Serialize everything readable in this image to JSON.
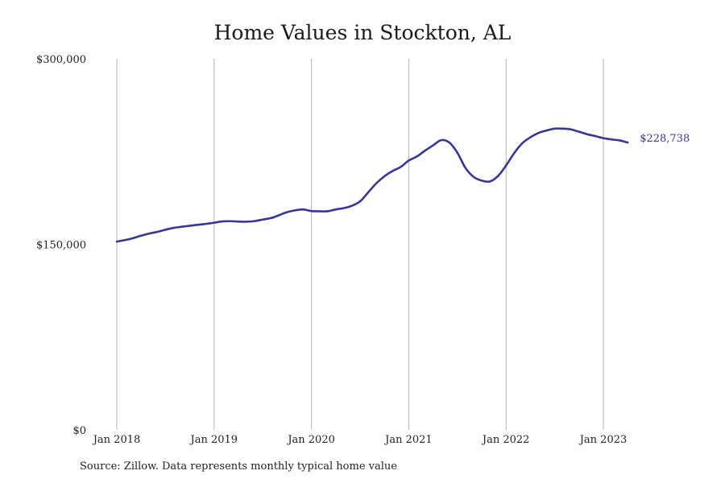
{
  "chart_data": {
    "type": "line",
    "title": "Home Values in Stockton, AL",
    "xlabel": "",
    "ylabel": "",
    "ylim": [
      0,
      300000
    ],
    "xlim": [
      "2018-01",
      "2023-09"
    ],
    "y_ticks": [
      0,
      150000,
      300000
    ],
    "y_tick_labels": [
      "$0",
      "$150,000",
      "$300,000"
    ],
    "x_ticks": [
      "2018-01",
      "2019-01",
      "2020-01",
      "2021-01",
      "2022-01",
      "2023-01"
    ],
    "x_tick_labels": [
      "Jan 2018",
      "Jan 2019",
      "Jan 2020",
      "Jan 2021",
      "Jan 2022",
      "Jan 2023"
    ],
    "grid": "vertical",
    "line_color": "#35359a",
    "end_label": "$228,738",
    "series": [
      {
        "x": [
          "2018-01",
          "2018-02",
          "2018-03",
          "2018-04",
          "2018-05",
          "2018-06",
          "2018-07",
          "2018-08",
          "2018-09",
          "2018-10",
          "2018-11",
          "2018-12",
          "2019-01",
          "2019-02",
          "2019-03",
          "2019-04",
          "2019-05",
          "2019-06",
          "2019-07",
          "2019-08",
          "2019-09",
          "2019-10",
          "2019-11",
          "2019-12",
          "2020-01",
          "2020-02",
          "2020-03",
          "2020-04",
          "2020-05",
          "2020-06",
          "2020-07",
          "2020-08",
          "2020-09",
          "2020-10",
          "2020-11",
          "2020-12",
          "2021-01",
          "2021-02",
          "2021-03",
          "2021-04",
          "2021-05",
          "2021-06",
          "2021-07",
          "2021-08",
          "2021-09",
          "2021-10",
          "2021-11",
          "2021-12",
          "2022-01",
          "2022-02",
          "2022-03",
          "2022-04",
          "2022-05",
          "2022-06",
          "2022-07",
          "2022-08",
          "2022-09",
          "2022-10",
          "2022-11",
          "2022-12",
          "2023-01",
          "2023-02",
          "2023-03",
          "2023-04"
        ],
        "values": [
          152200,
          153400,
          155000,
          157000,
          158700,
          160100,
          161800,
          163300,
          164200,
          165000,
          165800,
          166500,
          167500,
          168500,
          168700,
          168400,
          168300,
          168800,
          170000,
          171200,
          173500,
          176000,
          177500,
          178200,
          176900,
          176700,
          176700,
          178200,
          179300,
          181200,
          184700,
          192000,
          199300,
          205000,
          209200,
          212500,
          217700,
          221000,
          225700,
          230000,
          234200,
          232300,
          224000,
          211700,
          204500,
          201500,
          200800,
          205200,
          213700,
          223700,
          231700,
          236500,
          240000,
          242000,
          243500,
          243500,
          242900,
          241000,
          239000,
          237500,
          235800,
          234800,
          234000,
          232300
        ]
      }
    ]
  },
  "source": "Source: Zillow. Data represents monthly typical home value"
}
